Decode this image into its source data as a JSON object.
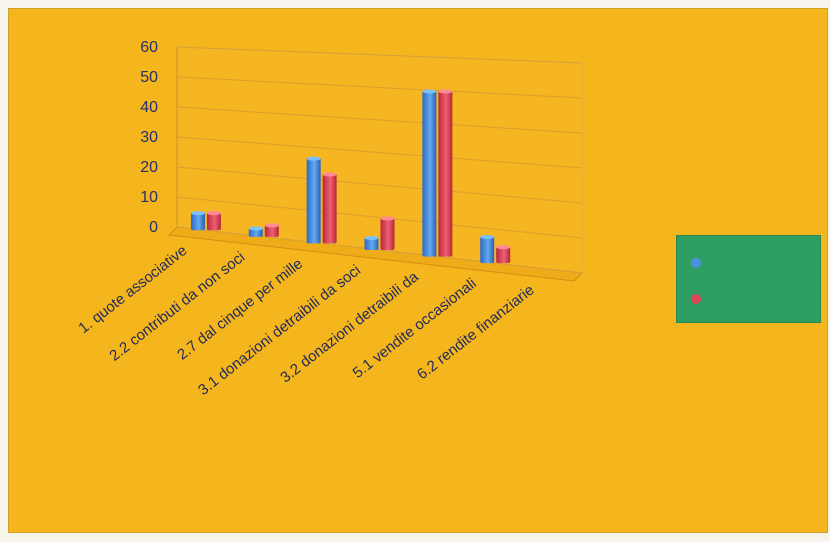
{
  "chart_data": {
    "type": "bar",
    "title": "",
    "xlabel": "",
    "ylabel": "",
    "ylim": [
      0,
      60
    ],
    "yticks": [
      0,
      10,
      20,
      30,
      40,
      50,
      60
    ],
    "categories": [
      "1. quote associative",
      "2.2 contributi da non soci",
      "2.7 dal cinque per mille",
      "3.1 donazioni detraibili da soci",
      "3.2 donazioni detraibili da",
      "5.1 vendite occasionali",
      "6.2 rendite finanziarie"
    ],
    "series": [
      {
        "color": "#4a90e2",
        "values": [
          6,
          3,
          27,
          4,
          50,
          8,
          0
        ]
      },
      {
        "color": "#e0465a",
        "values": [
          6,
          4,
          22,
          10,
          50,
          5,
          0
        ]
      }
    ],
    "grid": true,
    "legend": "right"
  }
}
